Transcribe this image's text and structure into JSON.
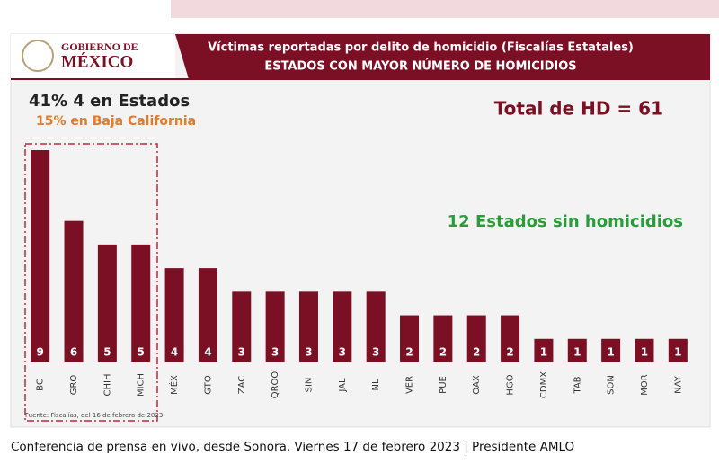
{
  "chart_data": {
    "type": "bar",
    "logo": [
      "GOBIERNO DE",
      "MÉXICO"
    ],
    "title": "Víctimas reportadas por delito de homicidio (Fiscalías Estatales)",
    "subtitle": "ESTADOS CON MAYOR NÚMERO DE HOMICIDIOS",
    "annotations": [
      "41% 4 en Estados",
      "15% en Baja California",
      "Total de HD = 61",
      "12 Estados sin homicidios"
    ],
    "source": "Fuente: Fiscalías, del 16 de febrero de 2023.",
    "categories": [
      "BC",
      "GRO",
      "CHIH",
      "MICH",
      "MÉX",
      "GTO",
      "ZAC",
      "QROO",
      "SIN",
      "JAL",
      "NL",
      "VER",
      "PUE",
      "OAX",
      "HGO",
      "CDMX",
      "TAB",
      "SON",
      "MOR",
      "NAY"
    ],
    "values": [
      9,
      6,
      5,
      5,
      4,
      4,
      3,
      3,
      3,
      3,
      3,
      2,
      2,
      2,
      2,
      1,
      1,
      1,
      1,
      1
    ],
    "color": "#7b1024"
  },
  "caption": "Conferencia de prensa en vivo, desde Sonora. Viernes 17 de febrero 2023 | Presidente AMLO"
}
